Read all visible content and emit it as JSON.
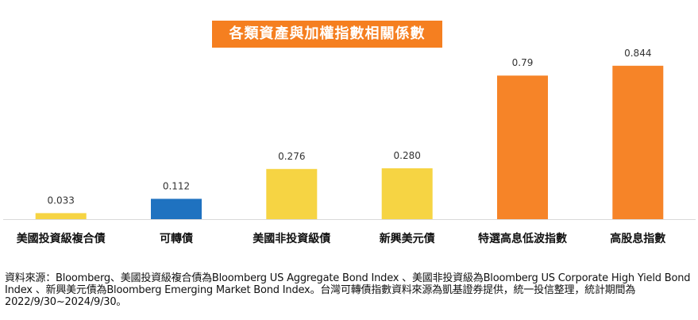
{
  "chart_data": {
    "type": "bar",
    "title": "各類資產與加權指數相關係數",
    "categories": [
      "美國投資級複合債",
      "可轉債",
      "美國非投資級債",
      "新興美元債",
      "特選高息低波指數",
      "高股息指數"
    ],
    "values": [
      0.033,
      0.112,
      0.276,
      0.28,
      0.79,
      0.844
    ],
    "value_labels": [
      "0.033",
      "0.112",
      "0.276",
      "0.280",
      "0.79",
      "0.844"
    ],
    "colors": [
      "#f6d443",
      "#1f72c0",
      "#f6d443",
      "#f6d443",
      "#f68428",
      "#f68428"
    ],
    "ylim": [
      0,
      0.9
    ],
    "grid": false,
    "legend": "none"
  },
  "footnote": "資料來源：Bloomberg、美國投資級複合債為Bloomberg US Aggregate Bond Index 、美國非投資級為Bloomberg US Corporate High Yield Bond Index 、新興美元債為Bloomberg Emerging Market Bond Index。台灣可轉債指數資料來源為凱基證券提供，統一投信整理，統計期間為2022/9/30~2024/9/30。"
}
